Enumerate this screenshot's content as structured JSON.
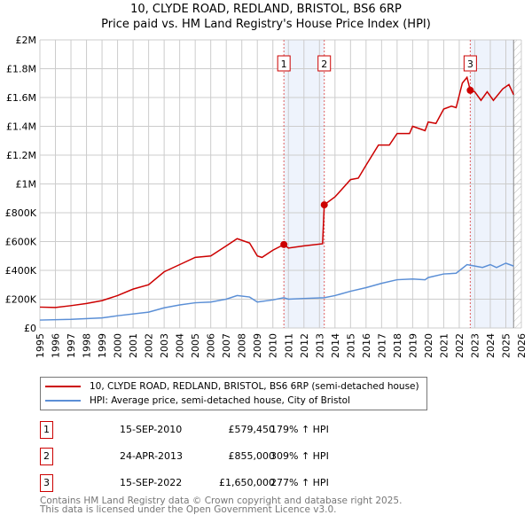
{
  "chart_data": {
    "type": "line",
    "title": "10, CLYDE ROAD, REDLAND, BRISTOL, BS6 6RP",
    "subtitle": "Price paid vs. HM Land Registry's House Price Index (HPI)",
    "xlim": [
      1995,
      2026
    ],
    "ylim": [
      0,
      2000000
    ],
    "x_ticks": [
      "1995",
      "1996",
      "1997",
      "1998",
      "1999",
      "2000",
      "2001",
      "2002",
      "2003",
      "2004",
      "2005",
      "2006",
      "2007",
      "2008",
      "2009",
      "2010",
      "2011",
      "2012",
      "2013",
      "2014",
      "2015",
      "2016",
      "2017",
      "2018",
      "2019",
      "2020",
      "2021",
      "2022",
      "2023",
      "2024",
      "2025",
      "2026"
    ],
    "y_ticks": [
      {
        "v": 0,
        "label": "£0"
      },
      {
        "v": 200000,
        "label": "£200K"
      },
      {
        "v": 400000,
        "label": "£400K"
      },
      {
        "v": 600000,
        "label": "£600K"
      },
      {
        "v": 800000,
        "label": "£800K"
      },
      {
        "v": 1000000,
        "label": "£1M"
      },
      {
        "v": 1200000,
        "label": "£1.2M"
      },
      {
        "v": 1400000,
        "label": "£1.4M"
      },
      {
        "v": 1600000,
        "label": "£1.6M"
      },
      {
        "v": 1800000,
        "label": "£1.8M"
      },
      {
        "v": 2000000,
        "label": "£2M"
      }
    ],
    "grid": true,
    "series": [
      {
        "name": "10, CLYDE ROAD, REDLAND, BRISTOL, BS6 6RP (semi-detached house)",
        "color": "#cc0000",
        "points": [
          [
            1995,
            145000
          ],
          [
            1996,
            142000
          ],
          [
            1997,
            155000
          ],
          [
            1998,
            170000
          ],
          [
            1999,
            190000
          ],
          [
            2000,
            225000
          ],
          [
            2001,
            270000
          ],
          [
            2002,
            300000
          ],
          [
            2003,
            390000
          ],
          [
            2004,
            440000
          ],
          [
            2005,
            490000
          ],
          [
            2006,
            500000
          ],
          [
            2007,
            570000
          ],
          [
            2007.7,
            620000
          ],
          [
            2008.5,
            590000
          ],
          [
            2009,
            500000
          ],
          [
            2009.3,
            490000
          ],
          [
            2010,
            540000
          ],
          [
            2010.71,
            579450
          ],
          [
            2011,
            555000
          ],
          [
            2012,
            570000
          ],
          [
            2013.2,
            585000
          ],
          [
            2013.31,
            855000
          ],
          [
            2014,
            910000
          ],
          [
            2015,
            1030000
          ],
          [
            2015.5,
            1040000
          ],
          [
            2016,
            1130000
          ],
          [
            2016.8,
            1270000
          ],
          [
            2017.5,
            1270000
          ],
          [
            2018,
            1350000
          ],
          [
            2018.8,
            1350000
          ],
          [
            2019,
            1400000
          ],
          [
            2019.8,
            1370000
          ],
          [
            2020,
            1430000
          ],
          [
            2020.5,
            1420000
          ],
          [
            2021,
            1520000
          ],
          [
            2021.5,
            1540000
          ],
          [
            2021.8,
            1530000
          ],
          [
            2022.2,
            1700000
          ],
          [
            2022.5,
            1740000
          ],
          [
            2022.71,
            1650000
          ],
          [
            2023,
            1640000
          ],
          [
            2023.4,
            1580000
          ],
          [
            2023.8,
            1640000
          ],
          [
            2024.2,
            1580000
          ],
          [
            2024.8,
            1660000
          ],
          [
            2025.2,
            1690000
          ],
          [
            2025.5,
            1620000
          ]
        ]
      },
      {
        "name": "HPI: Average price, semi-detached house, City of Bristol",
        "color": "#5b8fd6",
        "points": [
          [
            1995,
            55000
          ],
          [
            1997,
            60000
          ],
          [
            1999,
            70000
          ],
          [
            2000,
            85000
          ],
          [
            2002,
            110000
          ],
          [
            2003,
            140000
          ],
          [
            2004,
            160000
          ],
          [
            2005,
            175000
          ],
          [
            2006,
            180000
          ],
          [
            2007,
            200000
          ],
          [
            2007.7,
            225000
          ],
          [
            2008.5,
            215000
          ],
          [
            2009,
            180000
          ],
          [
            2010,
            195000
          ],
          [
            2010.7,
            210000
          ],
          [
            2011,
            200000
          ],
          [
            2012,
            205000
          ],
          [
            2013.3,
            210000
          ],
          [
            2014,
            225000
          ],
          [
            2015,
            255000
          ],
          [
            2016,
            280000
          ],
          [
            2017,
            310000
          ],
          [
            2018,
            335000
          ],
          [
            2019,
            340000
          ],
          [
            2019.8,
            335000
          ],
          [
            2020,
            350000
          ],
          [
            2021,
            375000
          ],
          [
            2021.8,
            380000
          ],
          [
            2022.5,
            440000
          ],
          [
            2023,
            430000
          ],
          [
            2023.5,
            420000
          ],
          [
            2024,
            440000
          ],
          [
            2024.4,
            420000
          ],
          [
            2025,
            450000
          ],
          [
            2025.5,
            430000
          ]
        ]
      }
    ],
    "sales": [
      {
        "n": "1",
        "x": 2010.71,
        "y": 579450,
        "date": "15-SEP-2010",
        "price": "£579,450",
        "hpi": "179% ↑ HPI"
      },
      {
        "n": "2",
        "x": 2013.31,
        "y": 855000,
        "date": "24-APR-2013",
        "price": "£855,000",
        "hpi": "309% ↑ HPI"
      },
      {
        "n": "3",
        "x": 2022.71,
        "y": 1650000,
        "date": "15-SEP-2022",
        "price": "£1,650,000",
        "hpi": "277% ↑ HPI"
      }
    ],
    "shaded_ranges": [
      [
        2010.71,
        2013.31
      ],
      [
        2022.71,
        2025.5
      ]
    ],
    "data_end": 2025.5,
    "legend_position": "below"
  },
  "footer": [
    "Contains HM Land Registry data © Crown copyright and database right 2025.",
    "This data is licensed under the Open Government Licence v3.0."
  ]
}
